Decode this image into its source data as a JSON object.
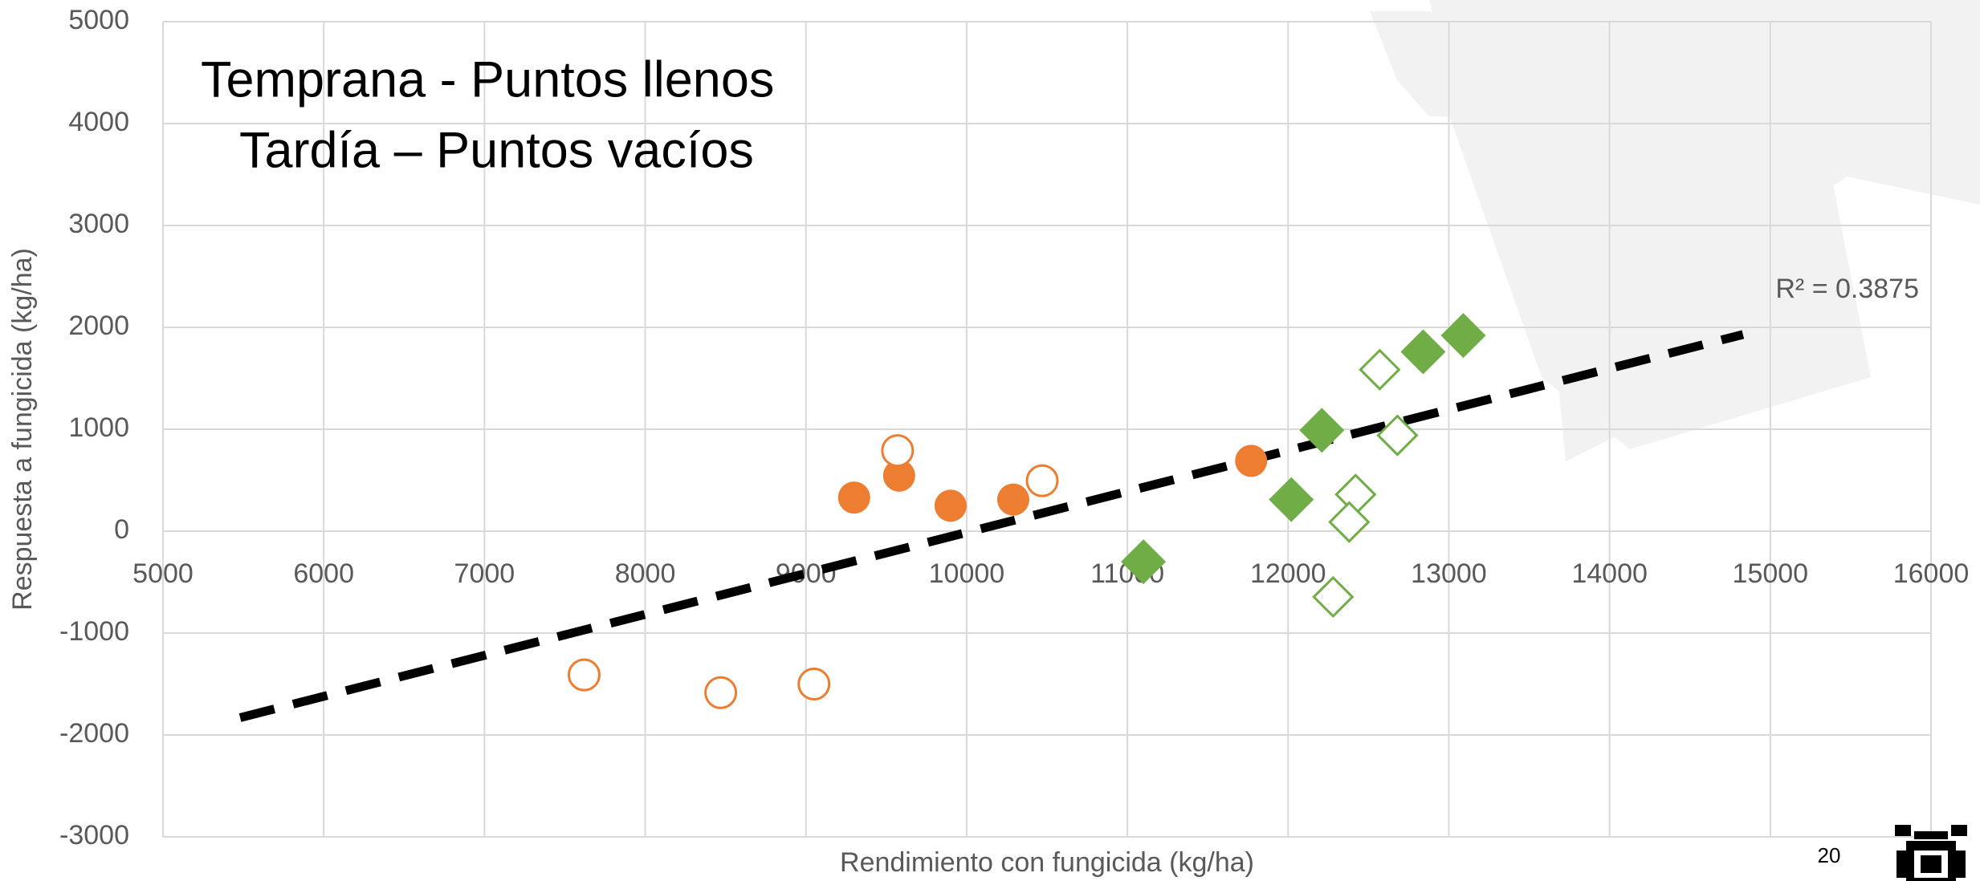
{
  "chart_data": {
    "type": "scatter",
    "annotations": [
      "Temprana - Puntos llenos",
      "Tardía – Puntos vacíos"
    ],
    "x_label": "Rendimiento con fungicida (kg/ha)",
    "y_label": "Respuesta a fungicida (kg/ha)",
    "xlim": [
      5000,
      16000
    ],
    "ylim": [
      -3000,
      5000
    ],
    "xticks": [
      5000,
      6000,
      7000,
      8000,
      9000,
      10000,
      11000,
      12000,
      13000,
      14000,
      15000,
      16000
    ],
    "yticks": [
      -3000,
      -2000,
      -1000,
      0,
      1000,
      2000,
      3000,
      4000,
      5000
    ],
    "grid": true,
    "series": [
      {
        "color": "#ed7d31",
        "marker": "circle",
        "filled": true,
        "x": [
          9300,
          9580,
          9900,
          10290,
          11770
        ],
        "values": [
          330,
          545,
          250,
          310,
          690
        ]
      },
      {
        "color": "#ed7d31",
        "marker": "circle",
        "filled": false,
        "x": [
          9570,
          10470,
          7620,
          8470,
          9050
        ],
        "values": [
          790,
          495,
          -1410,
          -1585,
          -1500
        ]
      },
      {
        "color": "#70ad47",
        "marker": "diamond",
        "filled": true,
        "x": [
          11100,
          12020,
          12210,
          12840,
          13090
        ],
        "values": [
          -300,
          310,
          990,
          1760,
          1920
        ]
      },
      {
        "color": "#70ad47",
        "marker": "diamond",
        "filled": false,
        "x": [
          12570,
          12680,
          12420,
          12380,
          12280
        ],
        "values": [
          1585,
          940,
          360,
          90,
          -645
        ]
      }
    ],
    "trendline": {
      "x": [
        5480,
        14830
      ],
      "y": [
        -1830,
        1930
      ],
      "color": "#000000",
      "label": "R² = 0.3875"
    },
    "page_number": "20"
  }
}
